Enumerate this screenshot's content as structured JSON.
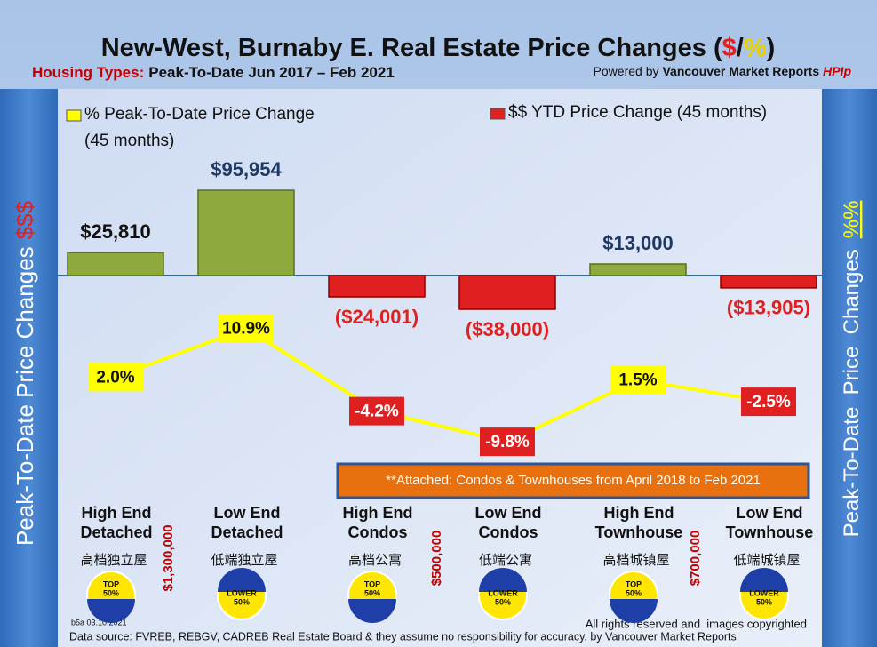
{
  "chart_data": {
    "type": "bar_line",
    "title": [
      "New-West, Burnaby E. Real Estate Price Changes (",
      "$",
      "/",
      "%",
      ")"
    ],
    "subtitle": [
      "Housing Types:",
      "Peak-To-Date Jun 2017 – Feb 2021"
    ],
    "powered_by": [
      "Powered by",
      "Vancouver Market Reports",
      "HPIp"
    ],
    "left_axis_label": [
      "Peak-To-Date Price Changes",
      "$$$"
    ],
    "right_axis_label": [
      "Peak-To-Date  Price  Changes",
      "%%"
    ],
    "categories": [
      [
        "High End",
        "Detached"
      ],
      [
        "Low End",
        "Detached"
      ],
      [
        "High End",
        "Condos"
      ],
      [
        "Low End",
        "Condos"
      ],
      [
        "High End",
        "Townhouse"
      ],
      [
        "Low End",
        "Townhouse"
      ]
    ],
    "chinese_labels": [
      "高档独立屋",
      "低端独立屋",
      "高档公寓",
      "低端公寓",
      "高档城镇屋",
      "低端城镇屋"
    ],
    "badges": [
      [
        "TOP",
        "50%"
      ],
      [
        "LOWER",
        "50%"
      ],
      [
        "TOP",
        "50%"
      ],
      [
        "LOWER",
        "50%"
      ],
      [
        "TOP",
        "50%"
      ],
      [
        "LOWER",
        "50%"
      ]
    ],
    "price_thresholds": [
      "$1,300,000",
      "$500,000",
      "$700,000"
    ],
    "series": [
      {
        "name": "$$ YTD Price Change (45 months)",
        "type": "bar",
        "positive_color": "#8faa3c",
        "negative_color": "#e02020",
        "values": [
          25810,
          95954,
          -24001,
          -38000,
          13000,
          -13905
        ],
        "value_labels": [
          "$25,810",
          "$95,954",
          "($24,001)",
          "($38,000)",
          "$13,000",
          "($13,905)"
        ]
      },
      {
        "name": "% Peak-To-Date Price Change (45 months)",
        "type": "line",
        "axis": "y2",
        "color": "#ffff00",
        "values": [
          2.0,
          10.9,
          -4.2,
          -9.8,
          1.5,
          -2.5
        ],
        "value_labels": [
          "2.0%",
          "10.9%",
          "-4.2%",
          "-9.8%",
          "1.5%",
          "-2.5%"
        ]
      }
    ],
    "ylim": [
      -250000,
      200000
    ],
    "y2lim": [
      -20,
      53
    ],
    "note": "**Attached: Condos & Townhouses from April 2018 to Feb 2021",
    "version": "b5a 03.10.2021",
    "copyright": "All rights reserved and  images copyrighted",
    "source": "Data source: FVREB, REBGV, CADREB Real Estate Board & they assume no responsibility for accuracy. by Vancouver Market Reports"
  }
}
